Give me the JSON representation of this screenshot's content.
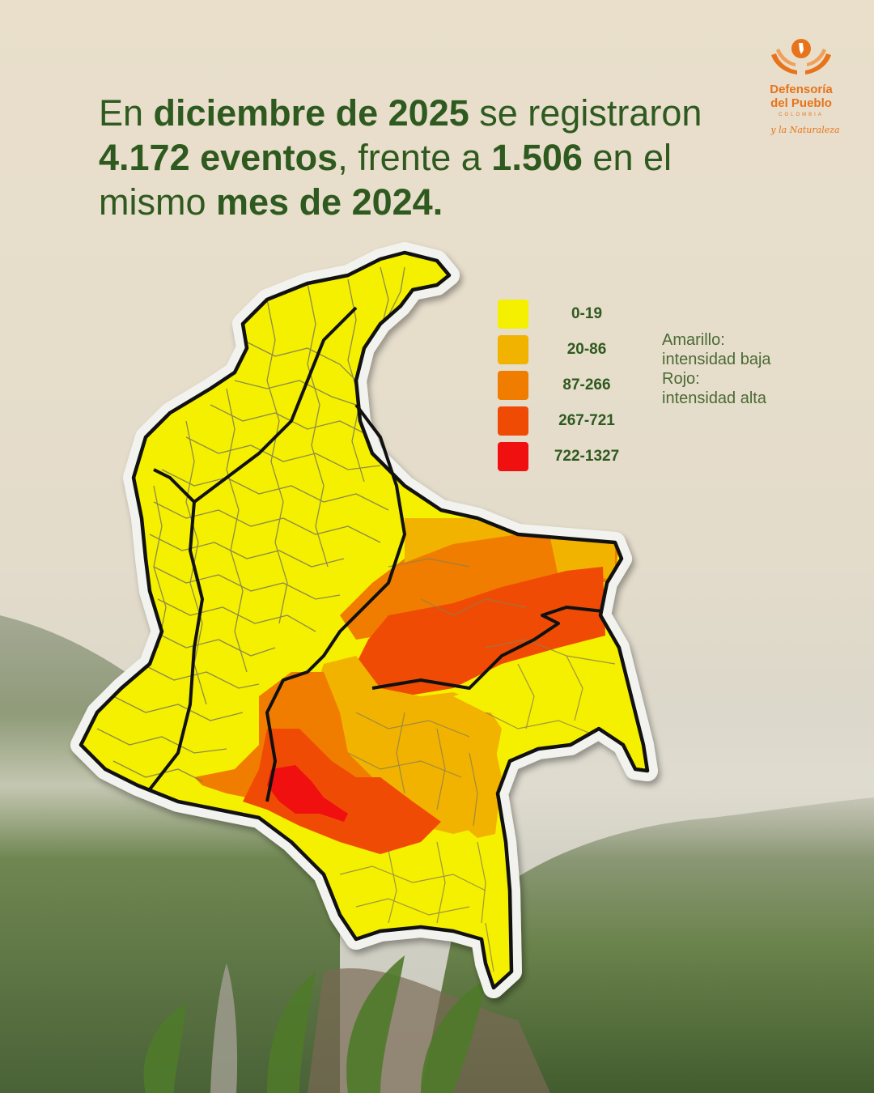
{
  "headline": {
    "p1": "En ",
    "b1": "diciembre de 2025",
    "p2": " se registraron ",
    "b2": "4.172 eventos",
    "p3": ", frente a ",
    "b3": "1.506",
    "p4": " en el mismo ",
    "b4": "mes de 2024."
  },
  "logo": {
    "line1": "Defensoría",
    "line2": "del Pueblo",
    "line3": "COLOMBIA",
    "line4": "y la Naturaleza"
  },
  "legend": {
    "items": [
      {
        "label": "0-19",
        "color": "#f5ef00"
      },
      {
        "label": "20-86",
        "color": "#f2b200"
      },
      {
        "label": "87-266",
        "color": "#f07d00"
      },
      {
        "label": "267-721",
        "color": "#f04b05"
      },
      {
        "label": "722-1327",
        "color": "#f01010"
      }
    ]
  },
  "note": {
    "line1": "Amarillo:",
    "line2": "intensidad baja",
    "line3": "Rojo:",
    "line4": "intensidad alta"
  }
}
